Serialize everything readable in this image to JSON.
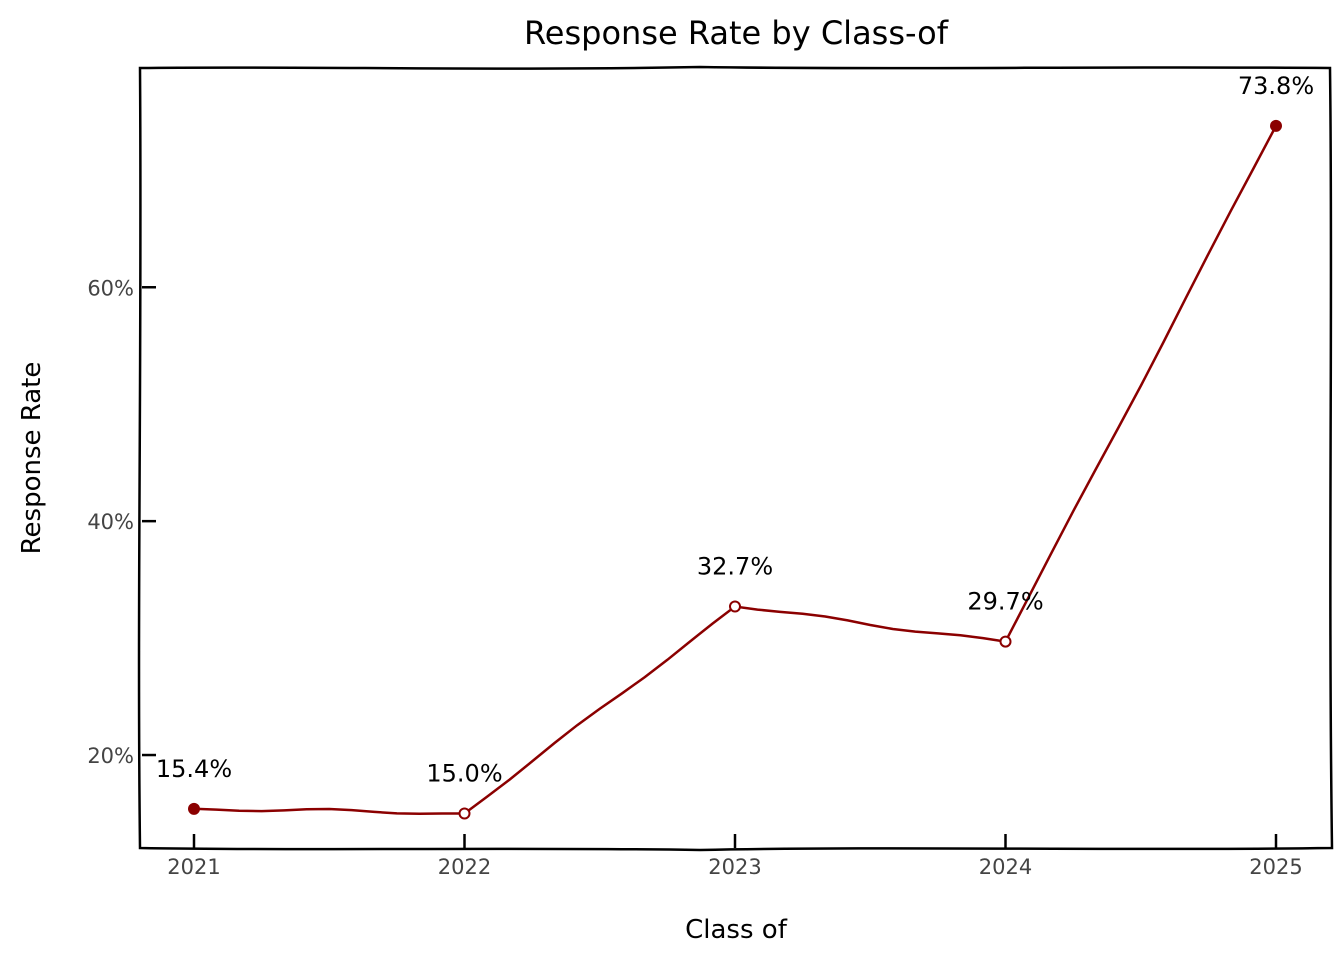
{
  "chart_data": {
    "type": "line",
    "title": "Response Rate by Class-of",
    "xlabel": "Class of",
    "ylabel": "Response Rate",
    "categories": [
      "2021",
      "2022",
      "2023",
      "2024",
      "2025"
    ],
    "series": [
      {
        "values": [
          15.4,
          15.0,
          32.7,
          29.7,
          73.8
        ],
        "labels": [
          "15.4%",
          "15.0%",
          "32.7%",
          "29.7%",
          "73.8%"
        ],
        "color": "#8b0000"
      }
    ],
    "yticks": [
      20,
      40,
      60
    ],
    "ytick_labels": [
      "20%",
      "40%",
      "60%"
    ],
    "ylim": [
      12.05,
      78.75
    ],
    "grid": false,
    "legend": "none"
  }
}
